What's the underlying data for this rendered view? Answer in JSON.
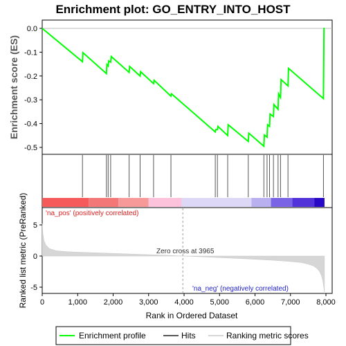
{
  "chart_data": {
    "type": "line",
    "title": "Enrichment plot: GO_ENTRY_INTO_HOST",
    "es_panel": {
      "ylabel": "Enrichment score (ES)",
      "ylim": [
        -0.52,
        0.03
      ],
      "yticks": [
        "0.0",
        "-0.1",
        "-0.2",
        "-0.3",
        "-0.4",
        "-0.5"
      ],
      "ytick_values": [
        0.0,
        -0.1,
        -0.2,
        -0.3,
        -0.4,
        -0.5
      ],
      "series": [
        {
          "name": "Enrichment profile",
          "color": "#00ff00",
          "x": [
            0,
            1135,
            1150,
            1810,
            1825,
            1860,
            1875,
            1930,
            1945,
            2450,
            2465,
            2760,
            2775,
            3140,
            3155,
            3630,
            3645,
            4880,
            4895,
            4940,
            4955,
            5230,
            5245,
            5810,
            5825,
            6250,
            6265,
            6340,
            6355,
            6410,
            6425,
            6520,
            6535,
            6650,
            6665,
            6720,
            6735,
            6930,
            6945,
            7930,
            7945
          ],
          "y": [
            0.0,
            -0.14,
            -0.102,
            -0.19,
            -0.152,
            -0.158,
            -0.137,
            -0.142,
            -0.118,
            -0.185,
            -0.16,
            -0.2,
            -0.182,
            -0.232,
            -0.218,
            -0.285,
            -0.275,
            -0.435,
            -0.425,
            -0.425,
            -0.412,
            -0.45,
            -0.405,
            -0.475,
            -0.44,
            -0.495,
            -0.448,
            -0.457,
            -0.405,
            -0.412,
            -0.36,
            -0.37,
            -0.32,
            -0.34,
            -0.275,
            -0.29,
            -0.215,
            -0.242,
            -0.168,
            -0.295,
            0.003
          ]
        }
      ],
      "legend": "bottom"
    },
    "hits": [
      1135,
      1810,
      1860,
      1930,
      2450,
      2760,
      3140,
      3630,
      4880,
      4940,
      5230,
      5810,
      6250,
      6340,
      6410,
      6520,
      6650,
      6720,
      6930,
      7930
    ],
    "hits_label": "Hits",
    "rank_panel": {
      "ylabel": "Ranked list metric (PreRanked)",
      "ylim": [
        -6.2,
        8.5
      ],
      "yticks": [
        "5",
        "0",
        "-5"
      ],
      "ytick_values": [
        5,
        0,
        -5
      ],
      "label_pos": "'na_pos' (positively correlated)",
      "label_neg": "'na_neg' (negatively correlated)",
      "zero_cross_label": "Zero cross at 3965",
      "zero_cross": 3965,
      "x": [
        0,
        20,
        50,
        100,
        200,
        400,
        700,
        1000,
        1500,
        2000,
        2500,
        3000,
        3500,
        3965,
        4500,
        5000,
        5500,
        6000,
        6500,
        7000,
        7300,
        7500,
        7650,
        7750,
        7820,
        7870,
        7910,
        7940,
        7960
      ],
      "y": [
        5.2,
        3.6,
        2.5,
        1.8,
        1.2,
        0.85,
        0.7,
        0.62,
        0.52,
        0.42,
        0.32,
        0.22,
        0.12,
        0.0,
        -0.12,
        -0.25,
        -0.38,
        -0.52,
        -0.68,
        -0.88,
        -1.05,
        -1.3,
        -1.6,
        -2.0,
        -2.5,
        -3.1,
        -3.9,
        -5.0,
        -6.0
      ]
    },
    "xlabel": "Rank in Ordered Dataset",
    "xlim": [
      0,
      8000
    ],
    "xticks": [
      "0",
      "1,000",
      "2,000",
      "3,000",
      "4,000",
      "5,000",
      "6,000",
      "7,000",
      "8,000"
    ],
    "xtick_values": [
      0,
      1000,
      2000,
      3000,
      4000,
      5000,
      6000,
      7000,
      8000
    ],
    "heatmap_colors": [
      "#f55b5b",
      "#f37777",
      "#f79999",
      "#fcc2dc",
      "#dcd8f5",
      "#b9b0ef",
      "#7b63e6",
      "#5133d9",
      "#2a09c6"
    ],
    "heatmap_breaks": [
      0,
      1310,
      2150,
      3000,
      3930,
      5900,
      6450,
      7050,
      7670,
      7960
    ]
  },
  "legend": {
    "profile_label": "Enrichment profile",
    "hits_label": "Hits",
    "metric_label": "Ranking metric scores",
    "profile_color": "#00ff00",
    "hits_color": "#555555",
    "metric_color": "#d6d6d6"
  }
}
